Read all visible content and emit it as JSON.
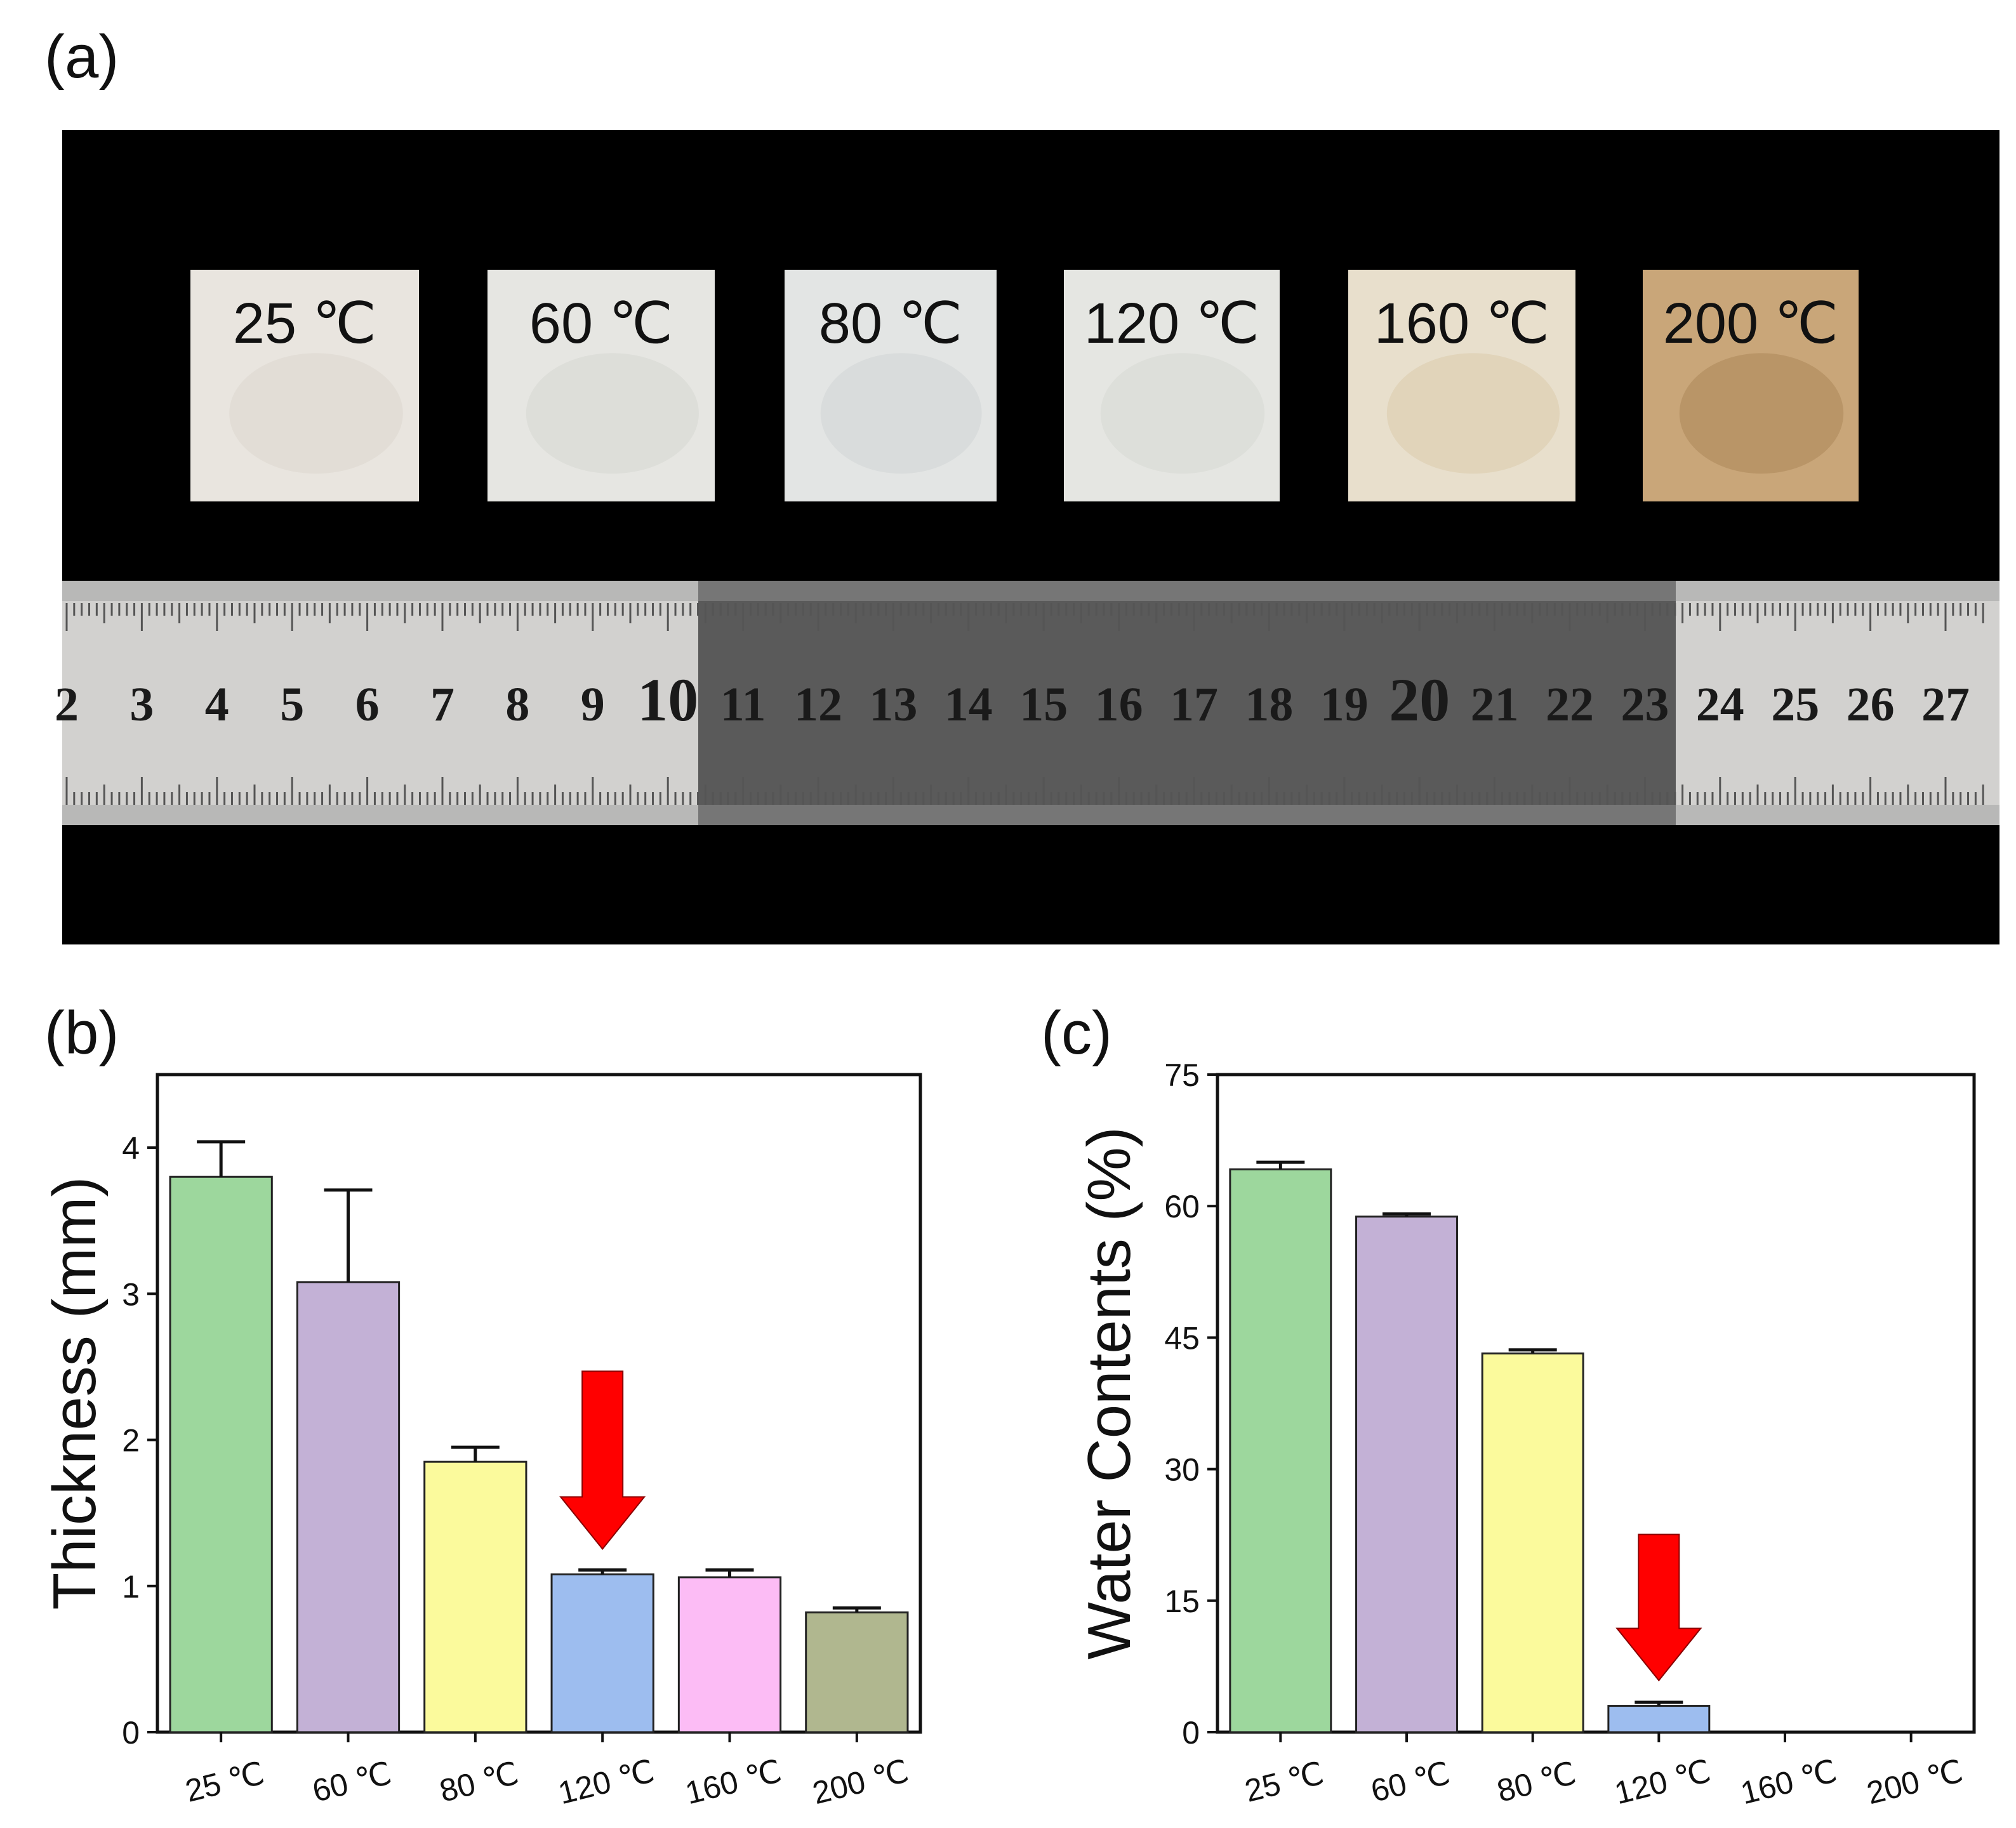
{
  "panels": {
    "a": {
      "label": "(a)",
      "samples": [
        {
          "label": "25 ℃",
          "color": "#e9e5df",
          "tint": "#dcd6cd"
        },
        {
          "label": "60 ℃",
          "color": "#e6e6e2",
          "tint": "#d3d5d0"
        },
        {
          "label": "80 ℃",
          "color": "#e3e5e4",
          "tint": "#d0d4d3"
        },
        {
          "label": "120 ℃",
          "color": "#e5e6e2",
          "tint": "#d6d8d2"
        },
        {
          "label": "160 ℃",
          "color": "#e8dfcc",
          "tint": "#d9c9a8"
        },
        {
          "label": "200 ℃",
          "color": "#c9a679",
          "tint": "#a98455"
        }
      ],
      "ruler": {
        "numbers": [
          "2",
          "3",
          "4",
          "5",
          "6",
          "7",
          "8",
          "9",
          "10",
          "11",
          "12",
          "13",
          "14",
          "15",
          "16",
          "17",
          "18",
          "19",
          "20",
          "21",
          "22",
          "23",
          "24",
          "25",
          "26",
          "27"
        ],
        "bold_numbers": [
          "10",
          "20"
        ]
      }
    }
  },
  "colors": {
    "bars": [
      "#9dd79d",
      "#c3b1d6",
      "#fbfa9c",
      "#9dbdef",
      "#fcbcf5",
      "#b0b78f"
    ],
    "arrow": "#ff0000",
    "sample_label": "#111111"
  },
  "chart_data": [
    {
      "id": "b",
      "panel_label": "(b)",
      "type": "bar",
      "categories": [
        "25 ℃",
        "60 ℃",
        "80 ℃",
        "120 ℃",
        "160 ℃",
        "200 ℃"
      ],
      "values": [
        3.8,
        3.08,
        1.85,
        1.08,
        1.06,
        0.82
      ],
      "errors": [
        0.24,
        0.63,
        0.1,
        0.03,
        0.05,
        0.03
      ],
      "xlabel": "",
      "ylabel": "Thickness (mm)",
      "ylim": [
        0,
        4.5
      ],
      "yticks": [
        0,
        1,
        2,
        3,
        4
      ],
      "highlight": "120 ℃",
      "grid": false,
      "legend": "none"
    },
    {
      "id": "c",
      "panel_label": "(c)",
      "type": "bar",
      "categories": [
        "25 ℃",
        "60 ℃",
        "80 ℃",
        "120 ℃",
        "160 ℃",
        "200 ℃"
      ],
      "values": [
        64.2,
        58.8,
        43.2,
        3.0,
        0,
        0
      ],
      "errors": [
        0.8,
        0.3,
        0.4,
        0.4,
        0,
        0
      ],
      "xlabel": "",
      "ylabel": "Water Contents (%)",
      "ylim": [
        0,
        75
      ],
      "yticks": [
        0,
        15,
        30,
        45,
        60,
        75
      ],
      "highlight": "120 ℃",
      "grid": false,
      "legend": "none"
    }
  ]
}
